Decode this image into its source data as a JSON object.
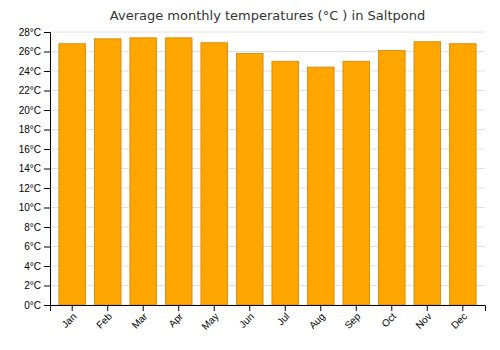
{
  "chart_data": {
    "type": "bar",
    "title": "Average monthly temperatures (°C ) in Saltpond",
    "categories": [
      "Jan",
      "Feb",
      "Mar",
      "Apr",
      "May",
      "Jun",
      "Jul",
      "Aug",
      "Sep",
      "Oct",
      "Nov",
      "Dec"
    ],
    "values": [
      26.8,
      27.3,
      27.4,
      27.4,
      26.9,
      25.8,
      25.0,
      24.4,
      25.0,
      26.1,
      27.0,
      26.8
    ],
    "color": "#FFA500",
    "ylim": [
      0,
      28
    ],
    "yticks": [
      {
        "value": 0,
        "label": "0°C"
      },
      {
        "value": 2,
        "label": "2°C"
      },
      {
        "value": 4,
        "label": "4°C"
      },
      {
        "value": 6,
        "label": "6°C"
      },
      {
        "value": 8,
        "label": "8°C"
      },
      {
        "value": 10,
        "label": "10°C"
      },
      {
        "value": 12,
        "label": "12°C"
      },
      {
        "value": 14,
        "label": "14°C"
      },
      {
        "value": 16,
        "label": "16°C"
      },
      {
        "value": 18,
        "label": "18°C"
      },
      {
        "value": 20,
        "label": "20°C"
      },
      {
        "value": 22,
        "label": "22°C"
      },
      {
        "value": 24,
        "label": "24°C"
      },
      {
        "value": 26,
        "label": "26°C"
      },
      {
        "value": 28,
        "label": "28°C"
      }
    ],
    "grid": true
  }
}
